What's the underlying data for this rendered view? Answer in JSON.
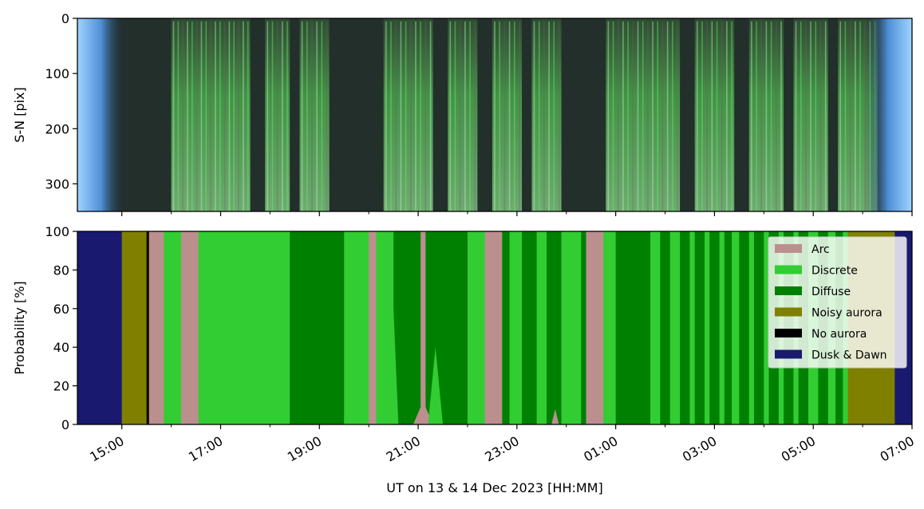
{
  "chart_data": [
    {
      "type": "heatmap",
      "panel": "keogram",
      "ylabel": "S-N [pix]",
      "ylim": [
        350,
        0
      ],
      "yticks": [
        0,
        100,
        200,
        300
      ],
      "xlim_hours": [
        14.1,
        31.0
      ],
      "description_colors": {
        "dusk_dawn_edge": "#6fb6f0",
        "background": "#22302c",
        "aurora_green": "#5ee35e",
        "aurora_pale": "#a8e8a8",
        "aurora_pink": "#8a5a70"
      },
      "bright_bands_hours": [
        [
          16.0,
          17.6
        ],
        [
          17.9,
          18.4
        ],
        [
          18.6,
          19.2
        ],
        [
          20.3,
          21.3
        ],
        [
          21.6,
          22.2
        ],
        [
          22.5,
          23.1
        ],
        [
          23.3,
          23.9
        ],
        [
          24.8,
          26.3
        ],
        [
          26.6,
          27.4
        ],
        [
          27.7,
          28.4
        ],
        [
          28.6,
          29.3
        ],
        [
          29.5,
          30.3
        ]
      ]
    },
    {
      "type": "area",
      "panel": "probability",
      "stacked": true,
      "xlabel": "UT on 13 & 14 Dec 2023 [HH:MM]",
      "ylabel": "Probability [%]",
      "ylim": [
        0,
        100
      ],
      "yticks": [
        0,
        20,
        40,
        60,
        80,
        100
      ],
      "xlim_hours": [
        14.1,
        31.0
      ],
      "xticks": [
        {
          "hour": 15,
          "label": "15:00"
        },
        {
          "hour": 17,
          "label": "17:00"
        },
        {
          "hour": 19,
          "label": "19:00"
        },
        {
          "hour": 21,
          "label": "21:00"
        },
        {
          "hour": 23,
          "label": "23:00"
        },
        {
          "hour": 25,
          "label": "01:00"
        },
        {
          "hour": 27,
          "label": "03:00"
        },
        {
          "hour": 29,
          "label": "05:00"
        },
        {
          "hour": 31,
          "label": "07:00"
        }
      ],
      "minor_tick_hours": [
        16,
        18,
        20,
        22,
        24,
        26,
        28,
        30
      ],
      "legend_position": "upper-right",
      "legend": [
        {
          "name": "Arc",
          "color": "#bc8f8f"
        },
        {
          "name": "Discrete",
          "color": "#32cd32"
        },
        {
          "name": "Diffuse",
          "color": "#008000"
        },
        {
          "name": "Noisy aurora",
          "color": "#808000"
        },
        {
          "name": "No aurora",
          "color": "#000000"
        },
        {
          "name": "Dusk & Dawn",
          "color": "#191970"
        }
      ],
      "segments": [
        {
          "start": 14.1,
          "end": 15.0,
          "class": "Dusk & Dawn"
        },
        {
          "start": 15.0,
          "end": 15.5,
          "class": "Noisy aurora"
        },
        {
          "start": 15.5,
          "end": 15.55,
          "class": "No aurora"
        },
        {
          "start": 15.55,
          "end": 15.85,
          "class": "Arc"
        },
        {
          "start": 15.85,
          "end": 16.2,
          "class": "Discrete"
        },
        {
          "start": 16.2,
          "end": 16.55,
          "class": "Arc"
        },
        {
          "start": 16.55,
          "end": 18.4,
          "class": "Discrete"
        },
        {
          "start": 18.4,
          "end": 19.5,
          "class": "Diffuse"
        },
        {
          "start": 19.5,
          "end": 20.0,
          "class": "Discrete"
        },
        {
          "start": 20.0,
          "end": 20.15,
          "class": "Arc"
        },
        {
          "start": 20.15,
          "end": 20.5,
          "class": "Discrete"
        },
        {
          "start": 20.5,
          "end": 21.05,
          "class": "Diffuse"
        },
        {
          "start": 21.05,
          "end": 21.15,
          "class": "Arc"
        },
        {
          "start": 21.15,
          "end": 22.0,
          "class": "Diffuse"
        },
        {
          "start": 22.0,
          "end": 22.35,
          "class": "Discrete"
        },
        {
          "start": 22.35,
          "end": 22.7,
          "class": "Arc"
        },
        {
          "start": 22.7,
          "end": 22.85,
          "class": "Diffuse"
        },
        {
          "start": 22.85,
          "end": 23.1,
          "class": "Discrete"
        },
        {
          "start": 23.1,
          "end": 23.4,
          "class": "Diffuse"
        },
        {
          "start": 23.4,
          "end": 23.6,
          "class": "Discrete"
        },
        {
          "start": 23.6,
          "end": 23.9,
          "class": "Diffuse"
        },
        {
          "start": 23.9,
          "end": 24.3,
          "class": "Discrete"
        },
        {
          "start": 24.3,
          "end": 24.4,
          "class": "Diffuse"
        },
        {
          "start": 24.4,
          "end": 24.75,
          "class": "Arc"
        },
        {
          "start": 24.75,
          "end": 25.0,
          "class": "Discrete"
        },
        {
          "start": 25.0,
          "end": 25.7,
          "class": "Diffuse"
        },
        {
          "start": 25.7,
          "end": 25.9,
          "class": "Discrete"
        },
        {
          "start": 25.9,
          "end": 26.1,
          "class": "Diffuse"
        },
        {
          "start": 26.1,
          "end": 26.3,
          "class": "Discrete"
        },
        {
          "start": 26.3,
          "end": 26.5,
          "class": "Diffuse"
        },
        {
          "start": 26.5,
          "end": 26.6,
          "class": "Discrete"
        },
        {
          "start": 26.6,
          "end": 26.8,
          "class": "Diffuse"
        },
        {
          "start": 26.8,
          "end": 26.9,
          "class": "Discrete"
        },
        {
          "start": 26.9,
          "end": 27.1,
          "class": "Diffuse"
        },
        {
          "start": 27.1,
          "end": 27.2,
          "class": "Discrete"
        },
        {
          "start": 27.2,
          "end": 27.35,
          "class": "Diffuse"
        },
        {
          "start": 27.35,
          "end": 27.5,
          "class": "Discrete"
        },
        {
          "start": 27.5,
          "end": 27.7,
          "class": "Diffuse"
        },
        {
          "start": 27.7,
          "end": 27.8,
          "class": "Discrete"
        },
        {
          "start": 27.8,
          "end": 28.0,
          "class": "Diffuse"
        },
        {
          "start": 28.0,
          "end": 28.1,
          "class": "Discrete"
        },
        {
          "start": 28.1,
          "end": 28.3,
          "class": "Diffuse"
        },
        {
          "start": 28.3,
          "end": 28.4,
          "class": "Discrete"
        },
        {
          "start": 28.4,
          "end": 28.6,
          "class": "Diffuse"
        },
        {
          "start": 28.6,
          "end": 28.7,
          "class": "Discrete"
        },
        {
          "start": 28.7,
          "end": 28.9,
          "class": "Diffuse"
        },
        {
          "start": 28.9,
          "end": 29.1,
          "class": "Discrete"
        },
        {
          "start": 29.1,
          "end": 29.3,
          "class": "Diffuse"
        },
        {
          "start": 29.3,
          "end": 29.45,
          "class": "Discrete"
        },
        {
          "start": 29.45,
          "end": 29.6,
          "class": "Diffuse"
        },
        {
          "start": 29.6,
          "end": 29.7,
          "class": "Discrete"
        },
        {
          "start": 29.7,
          "end": 30.65,
          "class": "Noisy aurora"
        },
        {
          "start": 30.65,
          "end": 31.0,
          "class": "Dusk & Dawn"
        }
      ],
      "spikes": [
        {
          "start": 20.9,
          "end": 21.3,
          "class": "Arc",
          "peak": 12
        },
        {
          "start": 21.2,
          "end": 21.5,
          "class": "Discrete",
          "peak": 40
        },
        {
          "start": 20.4,
          "end": 20.6,
          "class": "Discrete",
          "peak": 60
        },
        {
          "start": 23.7,
          "end": 23.85,
          "class": "Arc",
          "peak": 8
        }
      ]
    }
  ]
}
